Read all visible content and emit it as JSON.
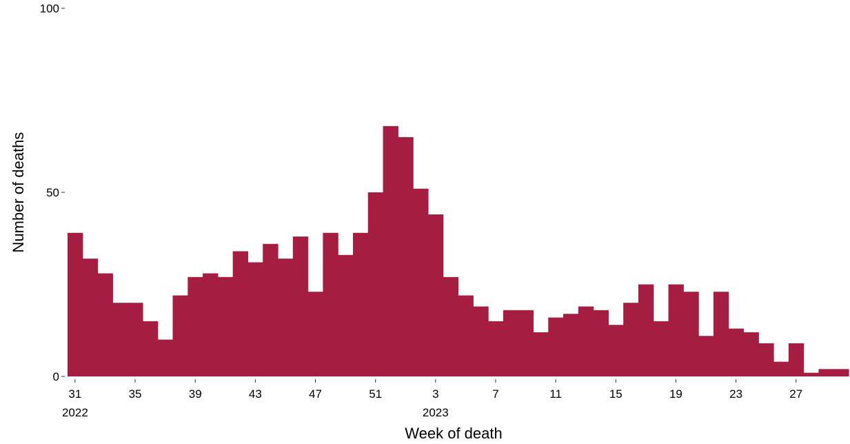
{
  "chart_data": {
    "type": "bar",
    "xlabel": "Week of death",
    "ylabel": "Number of deaths",
    "ylim": [
      0,
      100
    ],
    "y_ticks": [
      0,
      50,
      100
    ],
    "x_ticks": [
      {
        "week_index": 0,
        "label": "31",
        "year": "2022"
      },
      {
        "week_index": 4,
        "label": "35"
      },
      {
        "week_index": 8,
        "label": "39"
      },
      {
        "week_index": 12,
        "label": "43"
      },
      {
        "week_index": 16,
        "label": "47"
      },
      {
        "week_index": 20,
        "label": "51"
      },
      {
        "week_index": 24,
        "label": "3",
        "year": "2023"
      },
      {
        "week_index": 28,
        "label": "7"
      },
      {
        "week_index": 32,
        "label": "11"
      },
      {
        "week_index": 36,
        "label": "15"
      },
      {
        "week_index": 40,
        "label": "19"
      },
      {
        "week_index": 44,
        "label": "23"
      },
      {
        "week_index": 48,
        "label": "27"
      }
    ],
    "bar_color": "#a51e42",
    "grid": false,
    "values": [
      39,
      32,
      28,
      20,
      20,
      15,
      10,
      22,
      27,
      28,
      27,
      34,
      31,
      36,
      32,
      38,
      23,
      39,
      33,
      39,
      50,
      68,
      65,
      51,
      44,
      27,
      22,
      19,
      15,
      18,
      18,
      12,
      16,
      17,
      19,
      18,
      14,
      20,
      25,
      15,
      25,
      23,
      11,
      23,
      13,
      12,
      9,
      4,
      9,
      1,
      2,
      2
    ]
  }
}
